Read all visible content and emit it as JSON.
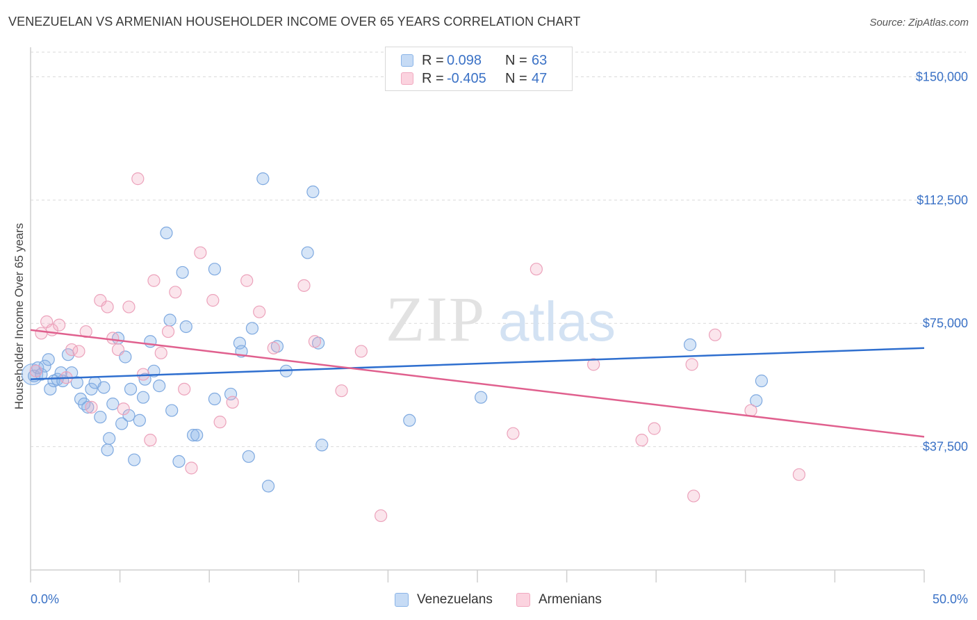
{
  "title": "VENEZUELAN VS ARMENIAN HOUSEHOLDER INCOME OVER 65 YEARS CORRELATION CHART",
  "source": "Source: ZipAtlas.com",
  "watermark": "ZIPatlas",
  "colors": {
    "venezuelans": "#8ab4e8",
    "venezuelans_line": "#2f6fcf",
    "armenians": "#f1a9c0",
    "armenians_line": "#e0608e",
    "tick_text": "#3b72c6",
    "grid": "#d9d9d9"
  },
  "legend": {
    "rows": [
      {
        "r_label": "R =",
        "r_value": "0.098",
        "n_label": "N =",
        "n_value": "63"
      },
      {
        "r_label": "R =",
        "r_value": "-0.405",
        "n_label": "N =",
        "n_value": "47"
      }
    ]
  },
  "bottom_legend": {
    "venezuelans": "Venezuelans",
    "armenians": "Armenians"
  },
  "chart_data": {
    "type": "scatter",
    "title": "VENEZUELAN VS ARMENIAN HOUSEHOLDER INCOME OVER 65 YEARS CORRELATION CHART",
    "xlabel": "",
    "ylabel": "Householder Income Over 65 years",
    "xlim": [
      0,
      50
    ],
    "ylim": [
      0,
      157500
    ],
    "x_tick_labels": [
      "0.0%",
      "50.0%"
    ],
    "y_ticks": [
      37500,
      75000,
      112500,
      150000
    ],
    "y_tick_labels": [
      "$37,500",
      "$75,000",
      "$112,500",
      "$150,000"
    ],
    "grid": "horizontal dashed",
    "legend_position": "top-center",
    "series": [
      {
        "name": "Venezuelans",
        "r": 0.098,
        "n": 63,
        "trend": {
          "x": [
            0,
            50
          ],
          "y": [
            58000,
            67500
          ]
        },
        "points": [
          [
            0.2,
            59000
          ],
          [
            0.4,
            61500
          ],
          [
            0.6,
            59500
          ],
          [
            0.8,
            62000
          ],
          [
            1.0,
            64000
          ],
          [
            1.1,
            55000
          ],
          [
            1.3,
            57500
          ],
          [
            1.5,
            58000
          ],
          [
            1.7,
            60000
          ],
          [
            1.8,
            57500
          ],
          [
            2.1,
            65500
          ],
          [
            2.3,
            60000
          ],
          [
            2.6,
            57000
          ],
          [
            2.8,
            52000
          ],
          [
            3.0,
            50500
          ],
          [
            3.2,
            49500
          ],
          [
            3.4,
            55000
          ],
          [
            3.6,
            57000
          ],
          [
            3.9,
            46500
          ],
          [
            4.1,
            55500
          ],
          [
            4.3,
            36500
          ],
          [
            4.4,
            40000
          ],
          [
            4.6,
            50500
          ],
          [
            4.9,
            70500
          ],
          [
            5.1,
            44500
          ],
          [
            5.3,
            64800
          ],
          [
            5.5,
            47000
          ],
          [
            5.6,
            55000
          ],
          [
            5.8,
            33500
          ],
          [
            6.1,
            45500
          ],
          [
            6.3,
            52500
          ],
          [
            6.4,
            58000
          ],
          [
            6.7,
            69500
          ],
          [
            6.9,
            60500
          ],
          [
            7.2,
            56000
          ],
          [
            7.6,
            102500
          ],
          [
            7.8,
            76000
          ],
          [
            7.9,
            48500
          ],
          [
            8.3,
            33000
          ],
          [
            8.5,
            90500
          ],
          [
            8.7,
            74000
          ],
          [
            9.1,
            41000
          ],
          [
            9.3,
            41000
          ],
          [
            10.3,
            91500
          ],
          [
            10.3,
            52000
          ],
          [
            11.2,
            53500
          ],
          [
            11.7,
            69000
          ],
          [
            11.8,
            66500
          ],
          [
            12.2,
            34500
          ],
          [
            12.4,
            73500
          ],
          [
            13.0,
            119000
          ],
          [
            13.3,
            25500
          ],
          [
            13.8,
            68000
          ],
          [
            14.3,
            60500
          ],
          [
            15.5,
            96500
          ],
          [
            15.8,
            115000
          ],
          [
            16.1,
            69000
          ],
          [
            16.3,
            38000
          ],
          [
            21.2,
            45500
          ],
          [
            25.2,
            52500
          ],
          [
            36.9,
            68500
          ],
          [
            40.6,
            51500
          ],
          [
            40.9,
            57500
          ]
        ]
      },
      {
        "name": "Armenians",
        "r": -0.405,
        "n": 47,
        "trend": {
          "x": [
            0,
            50
          ],
          "y": [
            73000,
            40500
          ]
        },
        "points": [
          [
            0.3,
            60500
          ],
          [
            0.6,
            72000
          ],
          [
            0.9,
            75500
          ],
          [
            1.2,
            73000
          ],
          [
            1.6,
            74500
          ],
          [
            2.0,
            58500
          ],
          [
            2.3,
            67000
          ],
          [
            2.7,
            66500
          ],
          [
            3.1,
            72500
          ],
          [
            3.4,
            49500
          ],
          [
            3.9,
            82000
          ],
          [
            4.3,
            80000
          ],
          [
            4.6,
            70500
          ],
          [
            4.9,
            67000
          ],
          [
            5.2,
            49000
          ],
          [
            5.5,
            80000
          ],
          [
            6.0,
            119000
          ],
          [
            6.3,
            59500
          ],
          [
            6.7,
            39500
          ],
          [
            6.9,
            88000
          ],
          [
            7.3,
            66000
          ],
          [
            7.7,
            72500
          ],
          [
            8.1,
            84500
          ],
          [
            8.6,
            55000
          ],
          [
            9.0,
            31000
          ],
          [
            9.5,
            96500
          ],
          [
            10.2,
            82000
          ],
          [
            10.6,
            45000
          ],
          [
            11.3,
            51000
          ],
          [
            12.1,
            88000
          ],
          [
            12.8,
            78500
          ],
          [
            13.6,
            67500
          ],
          [
            15.3,
            86500
          ],
          [
            15.9,
            69500
          ],
          [
            17.4,
            54500
          ],
          [
            18.5,
            66500
          ],
          [
            19.6,
            16500
          ],
          [
            27.0,
            41500
          ],
          [
            28.3,
            91500
          ],
          [
            31.5,
            62500
          ],
          [
            34.2,
            39500
          ],
          [
            34.9,
            43000
          ],
          [
            37.0,
            62500
          ],
          [
            37.1,
            22500
          ],
          [
            38.3,
            71500
          ],
          [
            40.3,
            48500
          ],
          [
            43.0,
            29000
          ]
        ]
      }
    ]
  }
}
